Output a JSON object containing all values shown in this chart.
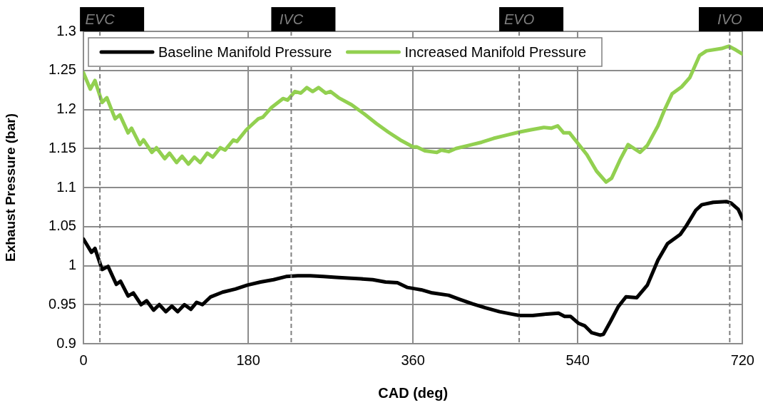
{
  "chart_data": {
    "type": "line",
    "xlabel": "CAD (deg)",
    "ylabel": "Exhaust Pressure (bar)",
    "xlim": [
      0,
      720
    ],
    "xticks": [
      0,
      180,
      360,
      540,
      720
    ],
    "ylim": [
      0.9,
      1.3
    ],
    "yticks": [
      0.9,
      0.95,
      1,
      1.05,
      1.1,
      1.15,
      1.2,
      1.25,
      1.3
    ],
    "grid": true,
    "legend": "top",
    "marker": "none",
    "line_style": "solid",
    "series": [
      {
        "name": "Baseline Manifold Pressure",
        "color": "#000000",
        "x": [
          0,
          8.8,
          12.6,
          20.4,
          26.9,
          35.9,
          40.5,
          48.8,
          54.5,
          63,
          69,
          76.7,
          82.9,
          90,
          96.6,
          103,
          110.3,
          117.3,
          123.7,
          130,
          139,
          152,
          166,
          179,
          193.5,
          207.7,
          221.4,
          234.3,
          247.8,
          262,
          276,
          289,
          303,
          316,
          330,
          343,
          354,
          364,
          369,
          381,
          399,
          410.5,
          425,
          439,
          454.5,
          467.5,
          476.5,
          490.7,
          506,
          519,
          525.6,
          532,
          541,
          547.5,
          555.3,
          564.3,
          568,
          576,
          584,
          592.7,
          604.5,
          616,
          627.6,
          638,
          652,
          658.6,
          669,
          675.5,
          688,
          702.4,
          707.5,
          715.3,
          720
        ],
        "values": [
          1.034,
          1.017,
          1.022,
          0.995,
          0.999,
          0.976,
          0.98,
          0.961,
          0.965,
          0.95,
          0.955,
          0.943,
          0.95,
          0.941,
          0.948,
          0.941,
          0.95,
          0.944,
          0.953,
          0.95,
          0.96,
          0.966,
          0.97,
          0.975,
          0.979,
          0.982,
          0.986,
          0.987,
          0.987,
          0.986,
          0.985,
          0.984,
          0.983,
          0.982,
          0.979,
          0.978,
          0.972,
          0.97,
          0.969,
          0.965,
          0.962,
          0.957,
          0.951,
          0.946,
          0.941,
          0.938,
          0.936,
          0.936,
          0.938,
          0.939,
          0.935,
          0.935,
          0.926,
          0.923,
          0.914,
          0.911,
          0.912,
          0.929,
          0.947,
          0.96,
          0.959,
          0.975,
          1.007,
          1.028,
          1.04,
          1.051,
          1.071,
          1.078,
          1.081,
          1.082,
          1.08,
          1.072,
          1.06
        ]
      },
      {
        "name": "Increased Manifold Pressure",
        "color": "#92d050",
        "x": [
          0,
          7.5,
          12.6,
          20.4,
          25.6,
          34.6,
          39.8,
          48.8,
          52.6,
          61.7,
          65.6,
          74.7,
          79.8,
          88.8,
          94,
          101.8,
          107.8,
          114.7,
          121.2,
          127.6,
          135.3,
          141.3,
          149.6,
          154.8,
          163.8,
          167.7,
          178,
          191,
          196,
          205,
          218,
          223,
          231,
          237.5,
          244,
          250.4,
          256.8,
          264.6,
          269.8,
          278.8,
          293,
          307,
          320,
          333,
          346,
          360,
          364,
          373,
          386,
          391,
          399,
          407,
          421,
          435,
          448,
          462,
          476,
          489,
          503,
          511,
          518,
          524.6,
          531,
          542.6,
          550,
          560.5,
          571,
          577,
          586,
          595,
          608,
          616,
          627.6,
          635,
          643,
          653.5,
          662.5,
          673,
          680.6,
          697,
          705,
          713,
          720
        ],
        "values": [
          1.247,
          1.226,
          1.237,
          1.209,
          1.215,
          1.188,
          1.193,
          1.17,
          1.176,
          1.155,
          1.161,
          1.145,
          1.151,
          1.137,
          1.144,
          1.132,
          1.14,
          1.13,
          1.139,
          1.132,
          1.144,
          1.139,
          1.151,
          1.148,
          1.161,
          1.159,
          1.174,
          1.188,
          1.19,
          1.202,
          1.214,
          1.212,
          1.223,
          1.221,
          1.228,
          1.223,
          1.228,
          1.221,
          1.223,
          1.215,
          1.206,
          1.194,
          1.182,
          1.171,
          1.161,
          1.152,
          1.152,
          1.147,
          1.145,
          1.148,
          1.146,
          1.15,
          1.154,
          1.158,
          1.163,
          1.167,
          1.171,
          1.174,
          1.177,
          1.176,
          1.179,
          1.17,
          1.17,
          1.153,
          1.142,
          1.121,
          1.107,
          1.112,
          1.135,
          1.155,
          1.145,
          1.154,
          1.179,
          1.2,
          1.22,
          1.229,
          1.241,
          1.269,
          1.275,
          1.278,
          1.281,
          1.276,
          1.271
        ]
      }
    ],
    "ref_lines": [
      {
        "axis": "x",
        "value": 18,
        "label": "EVC",
        "line_style": "dashed",
        "color": "#808080"
      },
      {
        "axis": "x",
        "value": 227,
        "label": "IVC",
        "line_style": "dashed",
        "color": "#808080"
      },
      {
        "axis": "x",
        "value": 476,
        "label": "EVO",
        "line_style": "dashed",
        "color": "#808080"
      },
      {
        "axis": "x",
        "value": 706,
        "label": "IVO",
        "line_style": "dashed",
        "color": "#808080"
      }
    ]
  }
}
